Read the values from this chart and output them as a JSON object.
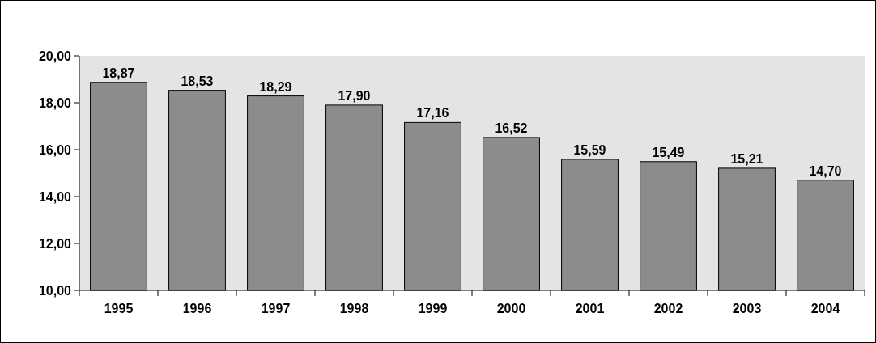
{
  "chart_data": {
    "type": "bar",
    "categories": [
      "1995",
      "1996",
      "1997",
      "1998",
      "1999",
      "2000",
      "2001",
      "2002",
      "2003",
      "2004"
    ],
    "values": [
      18.87,
      18.53,
      18.29,
      17.9,
      17.16,
      16.52,
      15.59,
      15.49,
      15.21,
      14.7
    ],
    "value_labels": [
      "18,87",
      "18,53",
      "18,29",
      "17,90",
      "17,16",
      "16,52",
      "15,59",
      "15,49",
      "15,21",
      "14,70"
    ],
    "color": "#8c8c8c",
    "ylim": [
      10,
      20
    ],
    "yticks": [
      {
        "value": 10,
        "label": "10,00"
      },
      {
        "value": 12,
        "label": "12,00"
      },
      {
        "value": 14,
        "label": "14,00"
      },
      {
        "value": 16,
        "label": "16,00"
      },
      {
        "value": 18,
        "label": "18,00"
      },
      {
        "value": 20,
        "label": "20,00"
      }
    ],
    "grid": false
  }
}
